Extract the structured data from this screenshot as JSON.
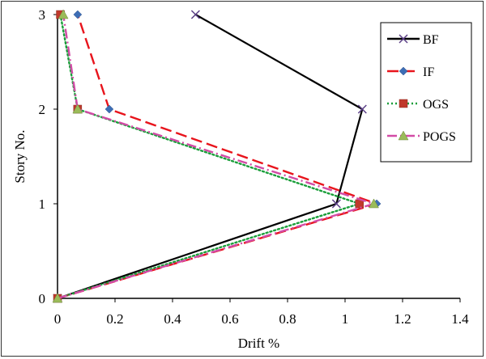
{
  "chart_data": {
    "type": "line",
    "title": "",
    "xlabel": "Drift %",
    "ylabel": "Story No.",
    "xlim": [
      0,
      1.4
    ],
    "ylim": [
      0,
      3
    ],
    "xticks": [
      "0",
      "0.2",
      "0.4",
      "0.6",
      "0.8",
      "1",
      "1.2",
      "1.4"
    ],
    "yticks": [
      "0",
      "1",
      "2",
      "3"
    ],
    "grid": false,
    "legend_position": "top-right",
    "series": [
      {
        "name": "BF",
        "color": "#000000",
        "marker": "x-icon",
        "dash": "solid",
        "x": [
          0,
          0.97,
          1.06,
          0.48
        ],
        "y": [
          0,
          1,
          2,
          3
        ]
      },
      {
        "name": "IF",
        "color": "#e8141c",
        "marker": "diamond-icon",
        "marker_color": "#3d6db5",
        "dash": "long-dash",
        "x": [
          0,
          1.11,
          0.18,
          0.07
        ],
        "y": [
          0,
          1,
          2,
          3
        ]
      },
      {
        "name": "OGS",
        "color": "#1a9e3a",
        "marker": "square-icon",
        "marker_color": "#c0392b",
        "dash": "dotted",
        "x": [
          0,
          1.05,
          0.07,
          0.01
        ],
        "y": [
          0,
          1,
          2,
          3
        ]
      },
      {
        "name": "POGS",
        "color": "#d24ba6",
        "marker": "triangle-icon",
        "marker_color": "#9bbb59",
        "dash": "dash-dot",
        "x": [
          0,
          1.1,
          0.07,
          0.02
        ],
        "y": [
          0,
          1,
          2,
          3
        ]
      }
    ]
  }
}
